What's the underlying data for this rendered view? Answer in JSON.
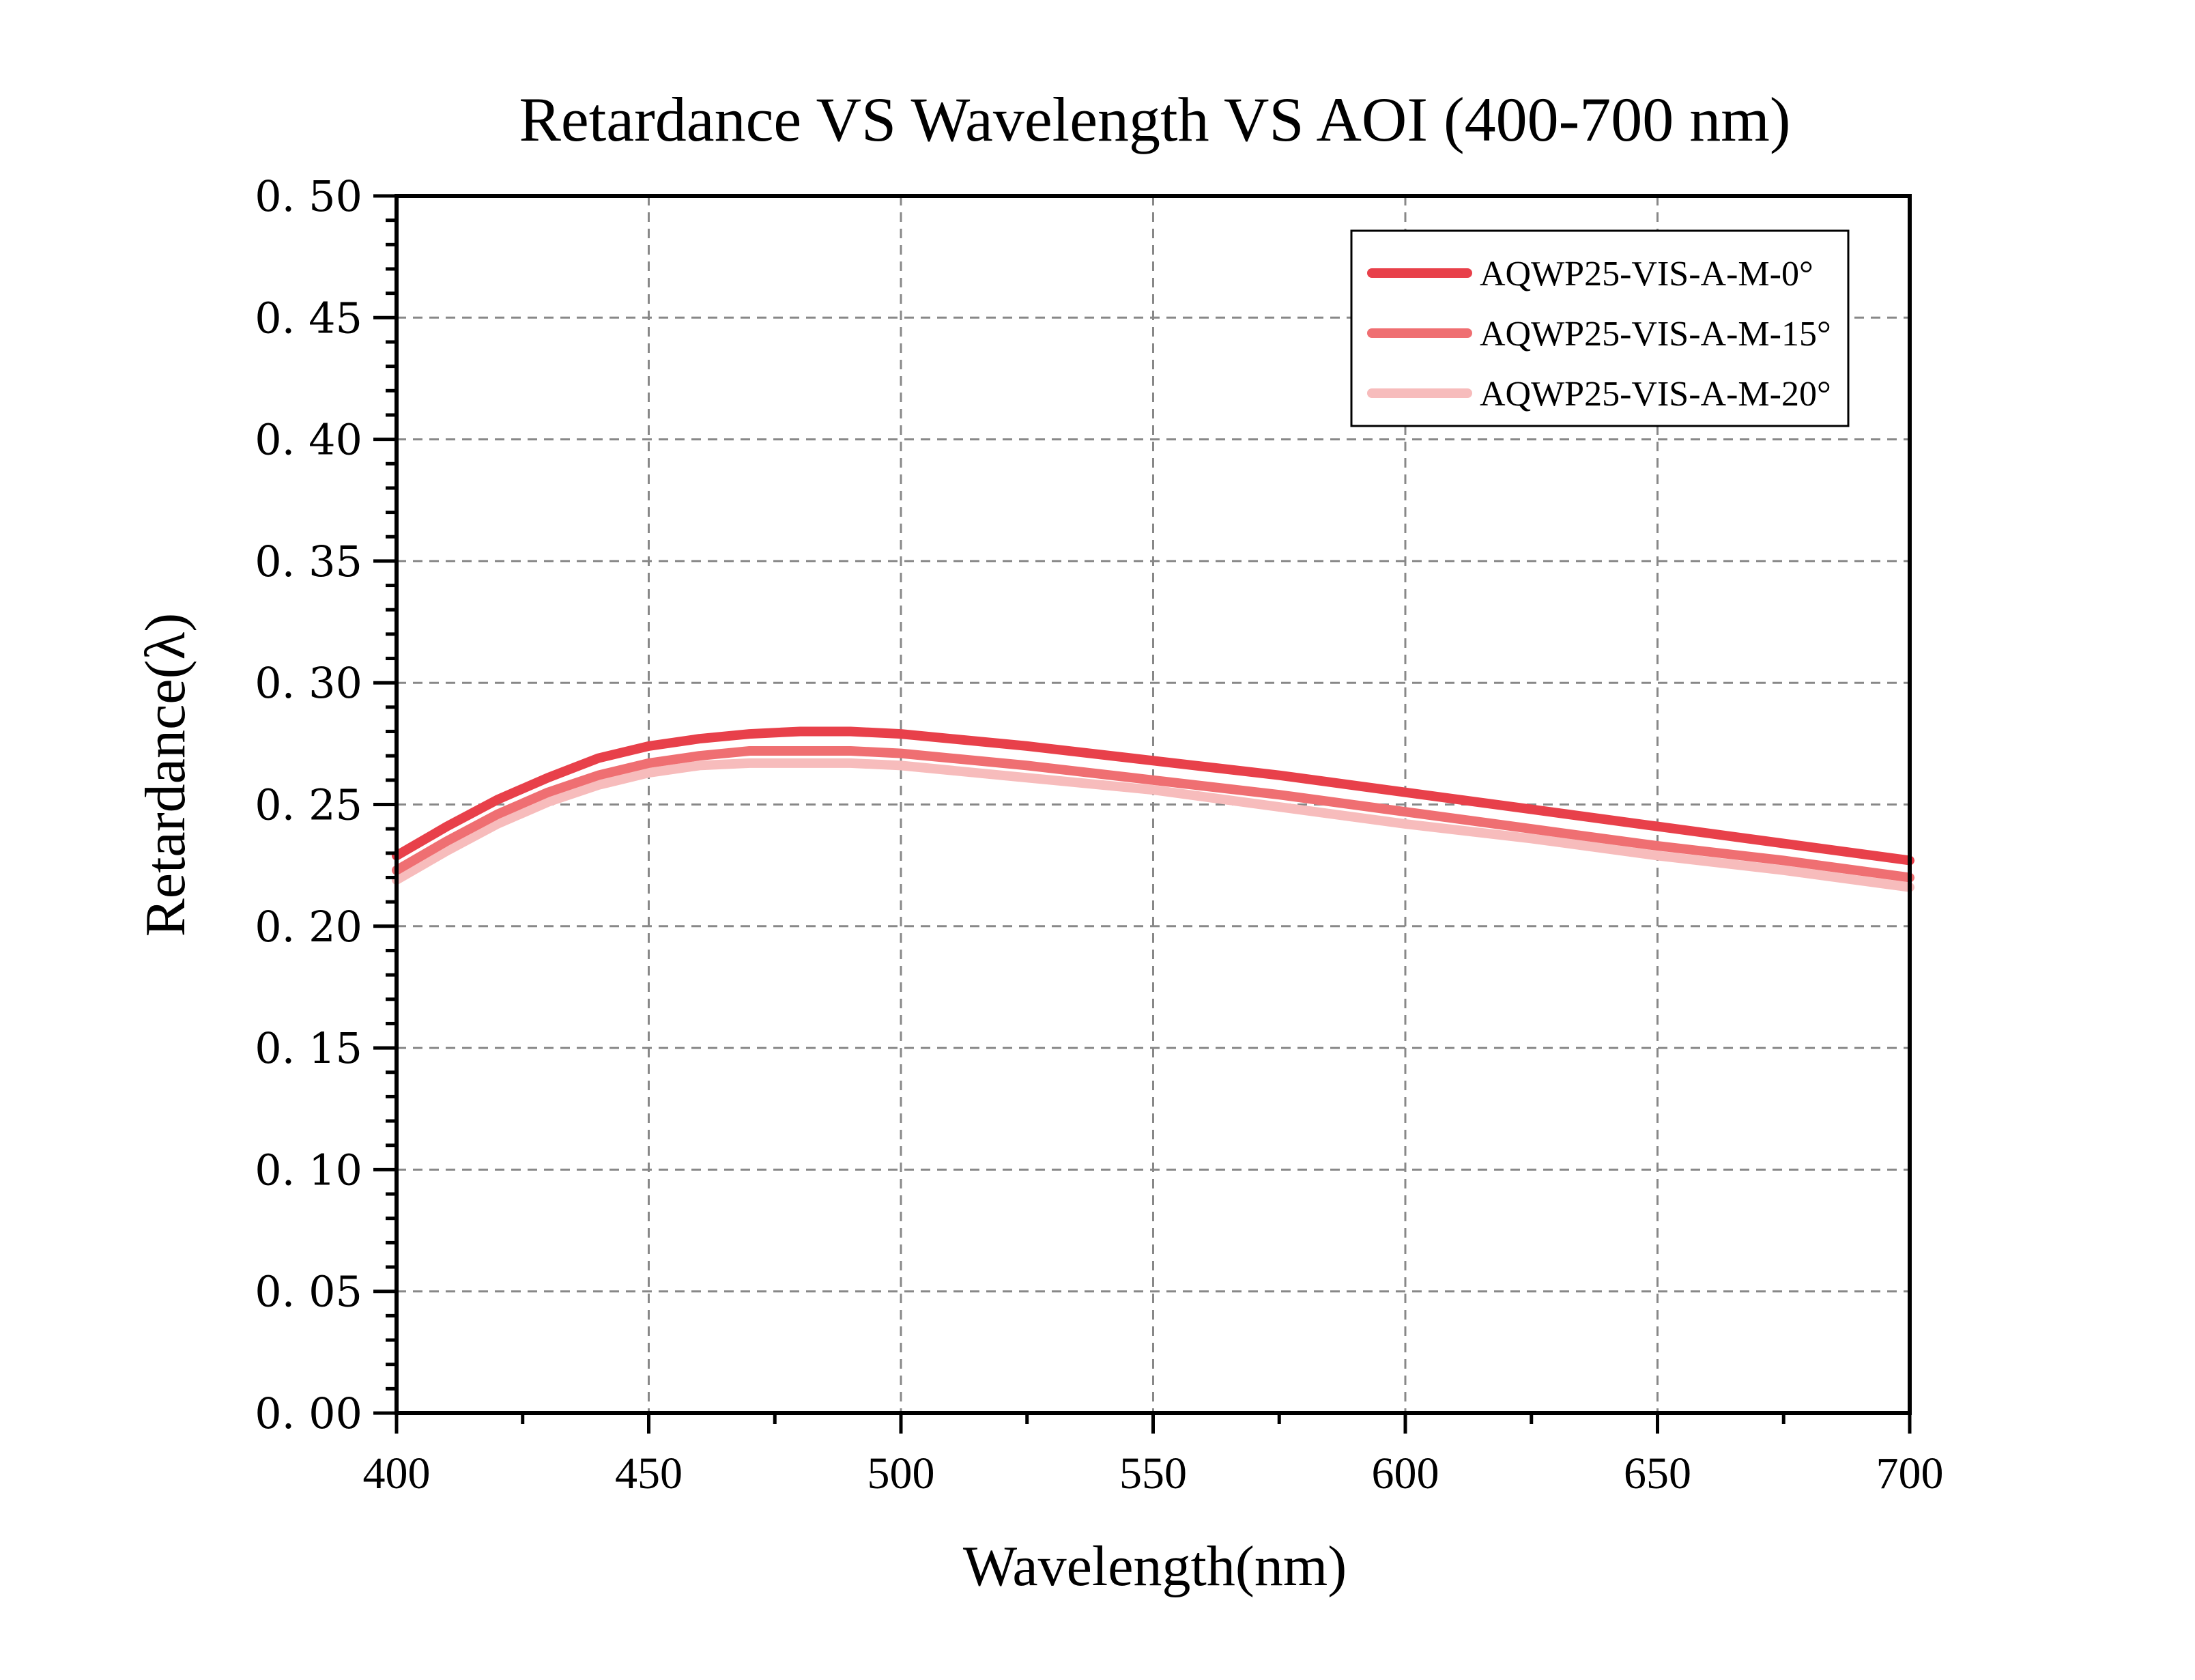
{
  "chart_data": {
    "type": "line",
    "title": "Retardance VS Wavelength VS AOI (400-700 nm)",
    "xlabel": "Wavelength(nm)",
    "ylabel": "Retardance(λ)",
    "xlim": [
      400,
      700
    ],
    "ylim": [
      0.0,
      0.5
    ],
    "xticks": [
      "400",
      "450",
      "500",
      "550",
      "600",
      "650",
      "700"
    ],
    "yticks": [
      "0. 00",
      "0. 05",
      "0. 10",
      "0. 15",
      "0. 20",
      "0. 25",
      "0. 30",
      "0. 35",
      "0. 40",
      "0. 45",
      "0. 50"
    ],
    "grid": true,
    "legend_position": "top-right",
    "x": [
      400,
      410,
      420,
      430,
      440,
      450,
      460,
      470,
      480,
      490,
      500,
      525,
      550,
      575,
      600,
      625,
      650,
      675,
      700
    ],
    "series": [
      {
        "name": "AQWP25-VIS-A-M-0°",
        "color": "#e8404a",
        "values": [
          0.229,
          0.241,
          0.252,
          0.261,
          0.269,
          0.274,
          0.277,
          0.279,
          0.28,
          0.28,
          0.279,
          0.274,
          0.268,
          0.262,
          0.255,
          0.248,
          0.241,
          0.234,
          0.227
        ]
      },
      {
        "name": "AQWP25-VIS-A-M-15°",
        "color": "#ef6f72",
        "values": [
          0.223,
          0.235,
          0.246,
          0.255,
          0.262,
          0.267,
          0.27,
          0.272,
          0.272,
          0.272,
          0.271,
          0.266,
          0.26,
          0.254,
          0.247,
          0.24,
          0.233,
          0.227,
          0.22
        ]
      },
      {
        "name": "AQWP25-VIS-A-M-20°",
        "color": "#f7bcbc",
        "values": [
          0.219,
          0.231,
          0.242,
          0.251,
          0.258,
          0.263,
          0.266,
          0.267,
          0.267,
          0.267,
          0.266,
          0.261,
          0.256,
          0.249,
          0.242,
          0.236,
          0.229,
          0.223,
          0.216
        ]
      }
    ]
  }
}
